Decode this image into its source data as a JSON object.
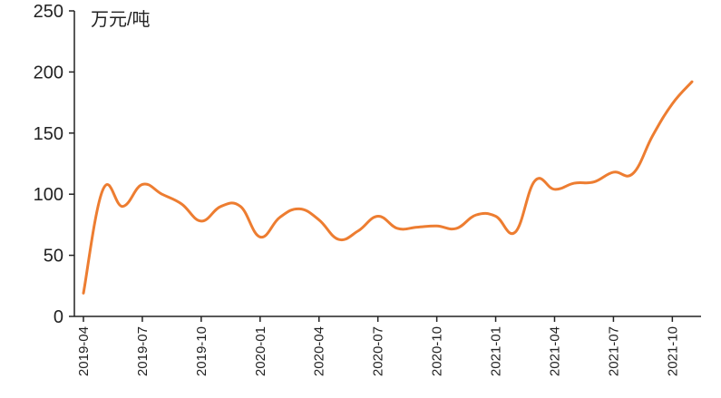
{
  "chart_data": {
    "type": "line",
    "unit_label": "万元/吨",
    "ylim": [
      0,
      250
    ],
    "yticks": [
      0,
      50,
      100,
      150,
      200,
      250
    ],
    "xtick_labels": [
      "2019-04",
      "2019-07",
      "2019-10",
      "2020-01",
      "2020-04",
      "2020-07",
      "2020-10",
      "2021-01",
      "2021-04",
      "2021-07",
      "2021-10"
    ],
    "grid": false,
    "series": [
      {
        "color": "#ED7D31",
        "x": [
          "2019-04",
          "2019-05",
          "2019-06",
          "2019-07",
          "2019-08",
          "2019-09",
          "2019-10",
          "2019-11",
          "2019-12",
          "2020-01",
          "2020-02",
          "2020-03",
          "2020-04",
          "2020-05",
          "2020-06",
          "2020-07",
          "2020-08",
          "2020-09",
          "2020-10",
          "2020-11",
          "2020-12",
          "2021-01",
          "2021-02",
          "2021-03",
          "2021-04",
          "2021-05",
          "2021-06",
          "2021-07",
          "2021-08",
          "2021-09",
          "2021-10",
          "2021-11"
        ],
        "values": [
          19,
          104,
          90,
          108,
          100,
          92,
          78,
          90,
          90,
          65,
          81,
          88,
          79,
          63,
          70,
          82,
          72,
          73,
          74,
          72,
          83,
          82,
          69,
          111,
          104,
          109,
          110,
          118,
          117,
          148,
          174,
          192
        ]
      }
    ]
  }
}
